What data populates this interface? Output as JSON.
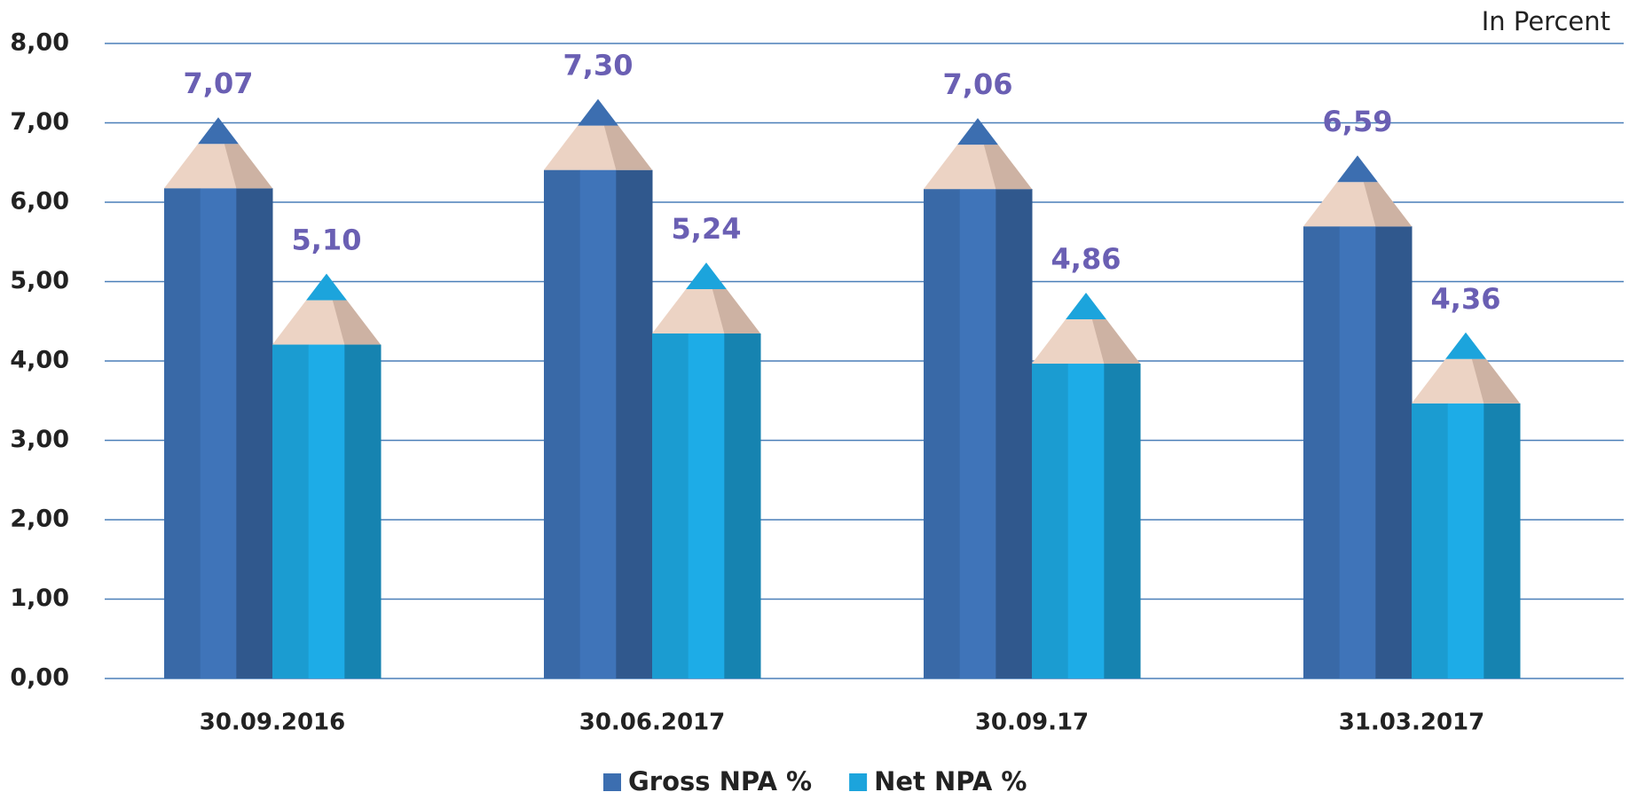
{
  "chart_data": {
    "type": "pencil-bar",
    "annotation": "In Percent",
    "categories": [
      "30.09.2016",
      "30.06.2017",
      "30.09.17",
      "31.03.2017"
    ],
    "series": [
      {
        "name": "Gross NPA %",
        "color": "#3c6eb0",
        "values": [
          7.07,
          7.3,
          7.06,
          6.59
        ],
        "value_labels": [
          "7,07",
          "7,30",
          "7,06",
          "6,59"
        ]
      },
      {
        "name": "Net NPA %",
        "color": "#1ca4dc",
        "values": [
          5.1,
          5.24,
          4.86,
          4.36
        ],
        "value_labels": [
          "5,10",
          "5,24",
          "4,86",
          "4,36"
        ]
      }
    ],
    "ylim": [
      0,
      8
    ],
    "yticks": [
      {
        "value": 0,
        "label": "0,00"
      },
      {
        "value": 1,
        "label": "1,00"
      },
      {
        "value": 2,
        "label": "2,00"
      },
      {
        "value": 3,
        "label": "3,00"
      },
      {
        "value": 4,
        "label": "4,00"
      },
      {
        "value": 5,
        "label": "5,00"
      },
      {
        "value": 6,
        "label": "6,00"
      },
      {
        "value": 7,
        "label": "7,00"
      },
      {
        "value": 8,
        "label": "8,00"
      }
    ],
    "grid": true,
    "legend": "bottom"
  }
}
